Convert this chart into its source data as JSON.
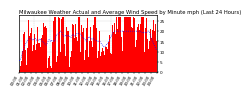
{
  "title": "Milwaukee Weather Actual and Average Wind Speed by Minute mph (Last 24 Hours)",
  "title_fontsize": 3.8,
  "background_color": "#ffffff",
  "bar_color": "#ff0000",
  "line_color": "#0000ff",
  "n_points": 1440,
  "seed": 42,
  "ylim": [
    0,
    28
  ],
  "yticks": [
    0,
    5,
    10,
    15,
    20,
    25
  ],
  "ylabel_fontsize": 3.0,
  "xlabel_fontsize": 2.8,
  "grid_color": "#aaaaaa",
  "vline_color": "#aaaaaa",
  "n_vlines": 9
}
